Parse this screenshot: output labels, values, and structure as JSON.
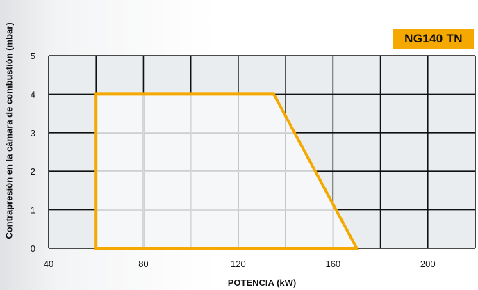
{
  "chart_data": {
    "type": "area",
    "badge": "NG140 TN",
    "xlabel": "POTENCIA (kW)",
    "ylabel": "Contrapresión en la cámara de combustión (mbar)",
    "xlim": [
      40,
      220
    ],
    "ylim": [
      0,
      5
    ],
    "x_ticks": [
      40,
      80,
      120,
      160,
      200
    ],
    "y_ticks": [
      0,
      1,
      2,
      3,
      4,
      5
    ],
    "x_grid": [
      40,
      60,
      80,
      100,
      120,
      140,
      160,
      180,
      200,
      220
    ],
    "grid": true,
    "series": [
      {
        "points": [
          {
            "x": 60,
            "y": 0
          },
          {
            "x": 60,
            "y": 4
          },
          {
            "x": 135,
            "y": 4
          },
          {
            "x": 170,
            "y": 0
          }
        ]
      }
    ],
    "colors": {
      "grid_fill": "#eaedf0",
      "region_fill": "#f6f7f9",
      "outline": "#f5a800",
      "grid_line": "#111111",
      "inner_grid_line": "#d6d9dc",
      "badge_bg": "#f5a800"
    }
  }
}
